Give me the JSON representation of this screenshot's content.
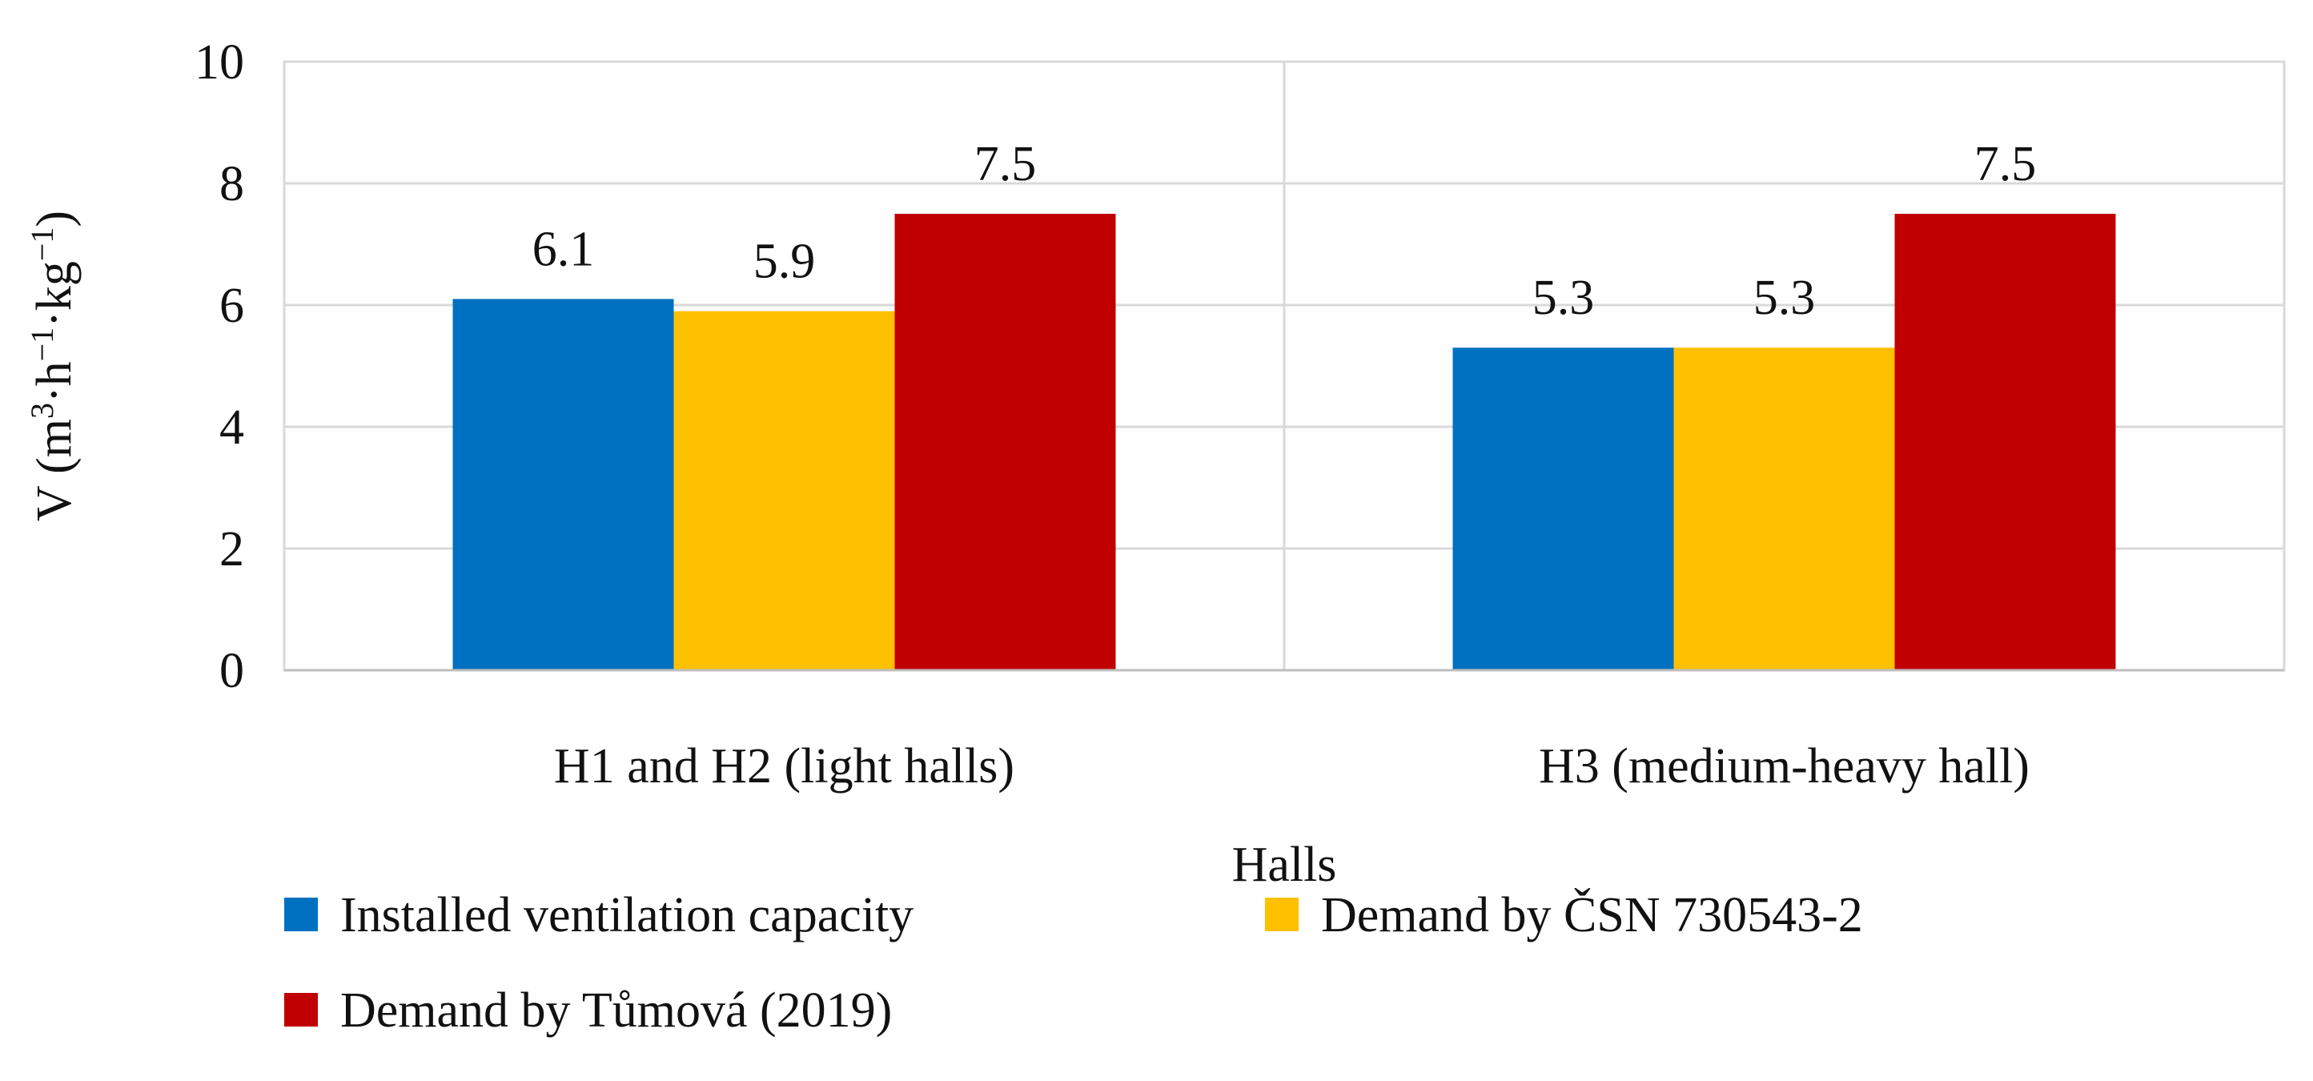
{
  "chart_data": {
    "type": "bar",
    "title": "",
    "xlabel": "Halls",
    "ylabel": "V (m",
    "ylabel_parts": [
      {
        "text": "V (m",
        "sup": false
      },
      {
        "text": "3",
        "sup": true
      },
      {
        "text": "·h",
        "sup": false
      },
      {
        "text": "−1",
        "sup": true
      },
      {
        "text": "·kg",
        "sup": false
      },
      {
        "text": "−1",
        "sup": true
      },
      {
        "text": ")",
        "sup": false
      }
    ],
    "ylim": [
      0,
      10
    ],
    "yticks": [
      "0",
      "2",
      "4",
      "6",
      "8",
      "10"
    ],
    "ytick_values": [
      0,
      2,
      4,
      6,
      8,
      10
    ],
    "grid": true,
    "legend_position": "bottom",
    "categories": [
      "H1 and H2 (light halls)",
      "H3 (medium-heavy hall)"
    ],
    "series": [
      {
        "name": "Installed ventilation capacity",
        "color": "#0070C0",
        "values": [
          6.1,
          5.3
        ],
        "labels": [
          "6.1",
          "5.3"
        ]
      },
      {
        "name": "Demand by ČSN 730543-2",
        "color": "#FFC000",
        "values": [
          5.9,
          5.3
        ],
        "labels": [
          "5.9",
          "5.3"
        ]
      },
      {
        "name": "Demand by Tůmová (2019)",
        "color": "#C00000",
        "values": [
          7.5,
          7.5
        ],
        "labels": [
          "7.5",
          "7.5"
        ]
      }
    ]
  }
}
